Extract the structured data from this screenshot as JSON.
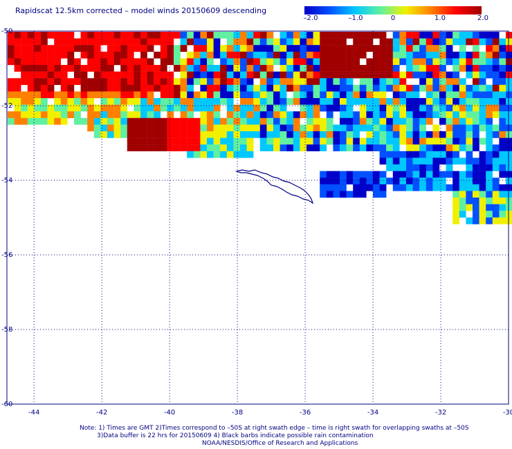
{
  "title": "Rapidscat 12.5km corrected – model winds 20150609 descending",
  "colorbar": {
    "stops": [
      "#0000c8",
      "#0050ff",
      "#00c8ff",
      "#60f0a0",
      "#f0f000",
      "#ff8000",
      "#ff0000",
      "#a00000"
    ],
    "ticks": [
      "–2.0",
      "–1.0",
      "0",
      "1.0",
      "2.0"
    ]
  },
  "map": {
    "lat_labels": [
      "-50",
      "-52",
      "-54",
      "-56",
      "-58",
      "-60"
    ],
    "lon_labels": [
      "-44",
      "-42",
      "-40",
      "-38",
      "-36",
      "-34",
      "-32",
      "-30"
    ],
    "grid_color": "#000080",
    "coast_color": "#000080",
    "feature": "South Georgia island coastline"
  },
  "notes": {
    "line1": "Note: 1) Times are GMT 2)Times correspond to –50S at right swath edge – time is right swath for overlapping swaths at –50S",
    "line2": "3)Data buffer is 22 hrs for 20150609 4) Black barbs indicate possible rain contamination",
    "line3": "NOAA/NESDIS/Office of Research and Applications"
  }
}
